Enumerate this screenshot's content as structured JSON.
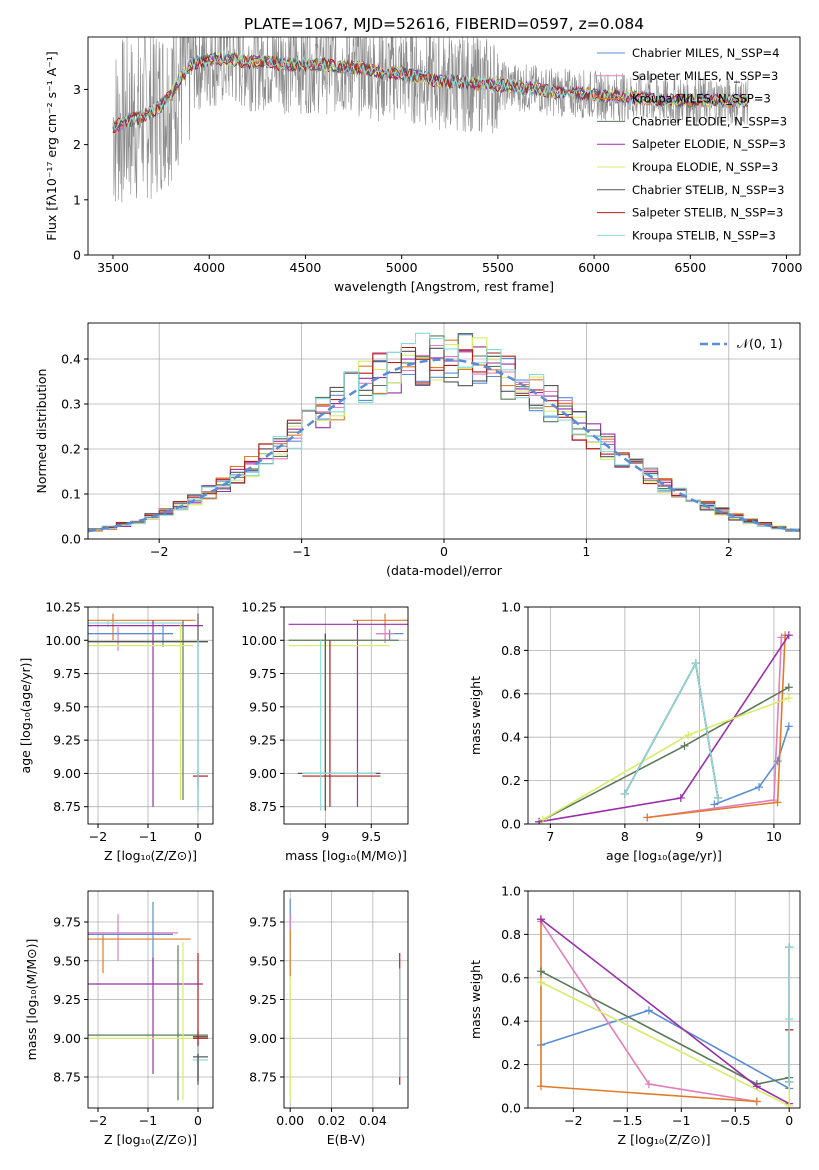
{
  "figure_title": "PLATE=1067, MJD=52616, FIBERID=0597, z=0.084",
  "colors": {
    "chabrier_miles": "#5b8dd6",
    "salpeter_miles": "#e37dbf",
    "kroupa_miles": "#e07b2a",
    "chabrier_elodie": "#5a7a5a",
    "salpeter_elodie": "#9a2fa8",
    "kroupa_elodie": "#d8ec6a",
    "chabrier_stelib": "#555555",
    "salpeter_stelib": "#b21e1e",
    "kroupa_stelib": "#87dcdc",
    "data": "#8c8c8c",
    "normal": "#5b8dd6",
    "grid": "#b0b0b0"
  },
  "chart_data": [
    {
      "id": "spectrum",
      "type": "line",
      "title": "PLATE=1067, MJD=52616, FIBERID=0597, z=0.084",
      "xlabel": "wavelength [Angstrom, rest frame]",
      "ylabel": "Flux [fλ10⁻¹⁷ erg cm⁻² s⁻¹ A⁻¹]",
      "xlim": [
        3370,
        7070
      ],
      "ylim": [
        0,
        3.95
      ],
      "xticks": [
        3500,
        4000,
        4500,
        5000,
        5500,
        6000,
        6500,
        7000
      ],
      "yticks": [
        0,
        1,
        2,
        3
      ],
      "grid": false,
      "legend_position": "top-right",
      "legend": [
        "Chabrier MILES, N_SSP=4",
        "Salpeter MILES, N_SSP=3",
        "Kroupa MILES, N_SSP=3",
        "Chabrier ELODIE, N_SSP=3",
        "Salpeter ELODIE, N_SSP=3",
        "Kroupa ELODIE, N_SSP=3",
        "Chabrier STELIB, N_SSP=3",
        "Salpeter STELIB, N_SSP=3",
        "Kroupa STELIB, N_SSP=3"
      ],
      "continuum_x": [
        3500,
        3550,
        3600,
        3650,
        3700,
        3750,
        3800,
        3850,
        3900,
        3950,
        4000,
        4100,
        4200,
        4300,
        4400,
        4500,
        4600,
        4700,
        4800,
        4900,
        5000,
        5200,
        5400,
        5600,
        5800,
        6000,
        6200,
        6400,
        6600,
        6800
      ],
      "continuum_y": [
        2.3,
        2.4,
        2.45,
        2.5,
        2.6,
        2.7,
        2.9,
        3.2,
        3.45,
        3.5,
        3.55,
        3.55,
        3.5,
        3.5,
        3.45,
        3.45,
        3.45,
        3.4,
        3.4,
        3.3,
        3.3,
        3.15,
        3.1,
        3.05,
        2.95,
        2.9,
        2.85,
        2.8,
        2.8,
        2.8
      ]
    },
    {
      "id": "residuals",
      "type": "histogram",
      "xlabel": "(data-model)/error",
      "ylabel": "Normed distribution",
      "xlim": [
        -2.5,
        2.5
      ],
      "ylim": [
        0,
        0.48
      ],
      "xticks": [
        -2,
        -1,
        0,
        1,
        2
      ],
      "yticks": [
        0.0,
        0.1,
        0.2,
        0.3,
        0.4
      ],
      "grid": true,
      "legend_position": "top-right",
      "legend": [
        "𝒩(0, 1)"
      ],
      "bin_width": 0.1
    },
    {
      "id": "age_vs_Z",
      "type": "errorbar",
      "xlabel": "Z [log₁₀(Z/Z⊙)]",
      "ylabel": "age  [log₁₀(age/yr)]",
      "xlim": [
        -2.2,
        0.3
      ],
      "ylim": [
        8.62,
        10.25
      ],
      "xticks": [
        -2,
        -1,
        0
      ],
      "yticks": [
        8.75,
        9.0,
        9.25,
        9.5,
        9.75,
        10.0,
        10.25
      ],
      "grid": true
    },
    {
      "id": "age_vs_mass",
      "type": "errorbar",
      "xlabel": "mass [log₁₀(M/M⊙)]",
      "ylabel": "",
      "xlim": [
        8.55,
        9.9
      ],
      "ylim": [
        8.62,
        10.25
      ],
      "xticks": [
        9.0,
        9.5
      ],
      "yticks": [
        8.75,
        9.0,
        9.25,
        9.5,
        9.75,
        10.0,
        10.25
      ],
      "grid": true
    },
    {
      "id": "weight_vs_age",
      "type": "line",
      "xlabel": "age  [log₁₀(age/yr)]",
      "ylabel": "mass weight",
      "xlim": [
        6.7,
        10.35
      ],
      "ylim": [
        0,
        1.0
      ],
      "xticks": [
        7,
        8,
        9,
        10
      ],
      "yticks": [
        0.0,
        0.2,
        0.4,
        0.6,
        0.8,
        1.0
      ],
      "grid": true,
      "series": [
        {
          "name": "Chabrier MILES",
          "x": [
            9.2,
            9.8,
            10.05,
            10.2
          ],
          "y": [
            0.09,
            0.17,
            0.29,
            0.45
          ]
        },
        {
          "name": "Salpeter MILES",
          "x": [
            8.3,
            10.0,
            10.1
          ],
          "y": [
            0.03,
            0.11,
            0.86
          ]
        },
        {
          "name": "Kroupa MILES",
          "x": [
            8.3,
            10.05,
            10.15
          ],
          "y": [
            0.03,
            0.1,
            0.87
          ]
        },
        {
          "name": "Chabrier ELODIE",
          "x": [
            6.85,
            8.8,
            10.2
          ],
          "y": [
            0.01,
            0.36,
            0.63
          ]
        },
        {
          "name": "Salpeter ELODIE",
          "x": [
            6.85,
            8.75,
            10.2
          ],
          "y": [
            0.01,
            0.12,
            0.87
          ]
        },
        {
          "name": "Kroupa ELODIE",
          "x": [
            6.9,
            8.85,
            10.2
          ],
          "y": [
            0.02,
            0.41,
            0.58
          ]
        },
        {
          "name": "Chabrier STELIB",
          "x": [
            8.0,
            8.95,
            9.25
          ],
          "y": [
            0.14,
            0.74,
            0.12
          ]
        },
        {
          "name": "Salpeter STELIB",
          "x": [
            8.0,
            8.95,
            9.25
          ],
          "y": [
            0.14,
            0.74,
            0.12
          ]
        },
        {
          "name": "Kroupa STELIB",
          "x": [
            8.0,
            8.95,
            9.25
          ],
          "y": [
            0.14,
            0.74,
            0.12
          ]
        }
      ]
    },
    {
      "id": "mass_vs_Z",
      "type": "errorbar",
      "xlabel": "Z [log₁₀(Z/Z⊙)]",
      "ylabel": "mass [log₁₀(M/M⊙)]",
      "xlim": [
        -2.2,
        0.3
      ],
      "ylim": [
        8.55,
        9.95
      ],
      "xticks": [
        -2,
        -1,
        0
      ],
      "yticks": [
        8.75,
        9.0,
        9.25,
        9.5,
        9.75
      ],
      "grid": true
    },
    {
      "id": "mass_vs_ebv",
      "type": "errorbar",
      "xlabel": "E(B-V)",
      "ylabel": "",
      "xlim": [
        -0.003,
        0.057
      ],
      "ylim": [
        8.55,
        9.95
      ],
      "xticks": [
        0.0,
        0.02,
        0.04
      ],
      "yticks": [
        8.75,
        9.0,
        9.25,
        9.5,
        9.75
      ],
      "grid": true
    },
    {
      "id": "weight_vs_Z",
      "type": "line",
      "xlabel": "Z [log₁₀(Z/Z⊙)]",
      "ylabel": "mass weight",
      "xlim": [
        -2.42,
        0.1
      ],
      "ylim": [
        0,
        1.0
      ],
      "xticks": [
        -2.0,
        -1.5,
        -1.0,
        -0.5,
        0.0
      ],
      "yticks": [
        0.0,
        0.2,
        0.4,
        0.6,
        0.8,
        1.0
      ],
      "grid": true,
      "series": [
        {
          "name": "Chabrier MILES",
          "x": [
            -2.3,
            -1.3,
            0.0
          ],
          "y": [
            0.29,
            0.45,
            0.09
          ]
        },
        {
          "name": "Salpeter MILES",
          "x": [
            -2.3,
            -1.3,
            -0.3
          ],
          "y": [
            0.86,
            0.11,
            0.03
          ]
        },
        {
          "name": "Kroupa MILES",
          "x": [
            -2.3,
            -2.3,
            -0.3
          ],
          "y": [
            0.87,
            0.1,
            0.03
          ]
        },
        {
          "name": "Chabrier ELODIE",
          "x": [
            -2.3,
            -0.3,
            0.0
          ],
          "y": [
            0.63,
            0.11,
            0.14
          ]
        },
        {
          "name": "Salpeter ELODIE",
          "x": [
            -2.3,
            -0.3,
            0.0
          ],
          "y": [
            0.87,
            0.1,
            0.02
          ]
        },
        {
          "name": "Kroupa ELODIE",
          "x": [
            -2.3,
            0.0,
            0.0
          ],
          "y": [
            0.58,
            0.01,
            0.41
          ]
        },
        {
          "name": "Chabrier STELIB",
          "x": [
            0.0,
            0.0,
            0.0
          ],
          "y": [
            0.74,
            0.36,
            0.12
          ]
        },
        {
          "name": "Salpeter STELIB",
          "x": [
            0.0,
            0.0,
            0.0
          ],
          "y": [
            0.74,
            0.36,
            0.12
          ]
        },
        {
          "name": "Kroupa STELIB",
          "x": [
            0.0,
            0.0,
            0.0
          ],
          "y": [
            0.74,
            0.41,
            0.12
          ]
        }
      ]
    }
  ]
}
